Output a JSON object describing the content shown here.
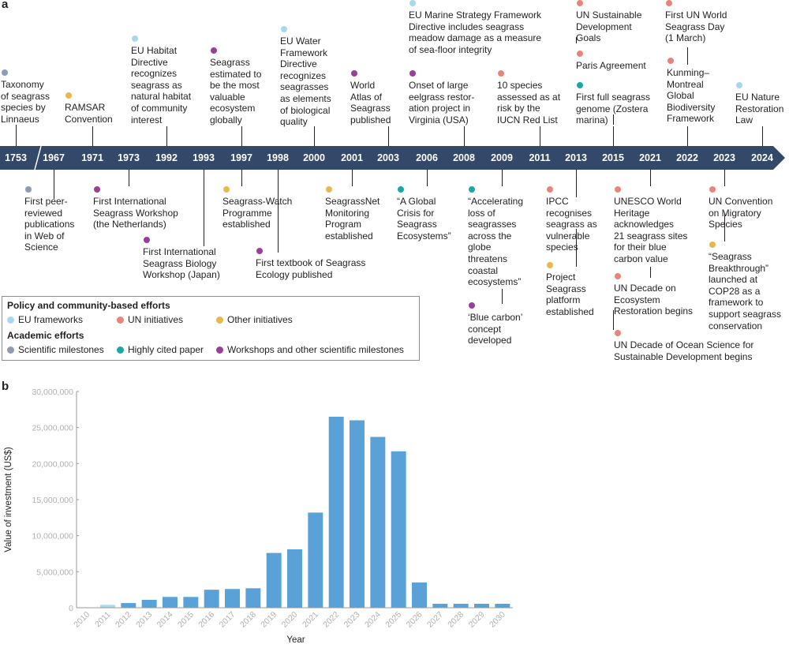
{
  "panel_a": {
    "letter": "a",
    "years": [
      "1753",
      "1967",
      "1971",
      "1973",
      "1992",
      "1993",
      "1997",
      "1998",
      "2000",
      "2001",
      "2003",
      "2006",
      "2008",
      "2009",
      "2011",
      "2013",
      "2015",
      "2021",
      "2022",
      "2023",
      "2024"
    ],
    "events_above": [
      {
        "text": "Taxonomy\nof seagrass\nspecies by\nLinnaeus",
        "category": "scientific"
      },
      {
        "text": "RAMSAR\nConvention",
        "category": "other"
      },
      {
        "text": "EU Habitat\nDirective\nrecognizes\nseagrass as\nnatural habitat\nof community\ninterest",
        "category": "eu"
      },
      {
        "text": "Seagrass\nestimated to\nbe the most\nvaluable\necosystem\nglobally",
        "category": "workshop"
      },
      {
        "text": "EU Water\nFramework\nDirective\nrecognizes\nseagrasses\nas elements\nof biological\nquality",
        "category": "eu"
      },
      {
        "text": "World\nAtlas of\nSeagrass\npublished",
        "category": "workshop"
      },
      {
        "text": "EU Marine Strategy Framework\nDirective includes seagrass\nmeadow damage as a measure\nof sea-floor integrity",
        "category": "eu"
      },
      {
        "text": "Onset of large\neelgrass restor-\nation project in\nVirginia (USA)",
        "category": "workshop"
      },
      {
        "text": "10 species\nassessed as at\nrisk by the\nIUCN Red List",
        "category": "un"
      },
      {
        "text": "UN Sustainable\nDevelopment\nGoals",
        "category": "un"
      },
      {
        "text": "Paris Agreement",
        "category": "un"
      },
      {
        "text": "First full seagrass\ngenome (Zostera\nmarina)",
        "category": "cited"
      },
      {
        "text": "First UN World\nSeagrass Day\n(1 March)",
        "category": "un"
      },
      {
        "text": "Kunming–\nMontreal\nGlobal\nBiodiversity\nFramework",
        "category": "un"
      },
      {
        "text": "EU Nature\nRestoration\nLaw",
        "category": "eu"
      }
    ],
    "events_below": [
      {
        "text": "First peer-\nreviewed\npublications\nin Web of\nScience",
        "category": "scientific"
      },
      {
        "text": "First International\nSeagrass Workshop\n(the Netherlands)",
        "category": "workshop"
      },
      {
        "text": "First International\nSeagrass Biology\nWorkshop (Japan)",
        "category": "workshop"
      },
      {
        "text": "Seagrass-Watch\nProgramme\nestablished",
        "category": "other"
      },
      {
        "text": "First textbook of Seagrass\nEcology published",
        "category": "workshop"
      },
      {
        "text": "SeagrassNet\nMonitoring\nProgram\nestablished",
        "category": "other"
      },
      {
        "text": "“A Global\nCrisis for\nSeagrass\nEcosystems”",
        "category": "cited"
      },
      {
        "text": "“Accelerating\nloss of\nseagrasses\nacross the\nglobe\nthreatens\ncoastal\necosystems”",
        "category": "cited"
      },
      {
        "text": "‘Blue carbon’\nconcept\ndeveloped",
        "category": "workshop"
      },
      {
        "text": "IPCC\nrecognises\nseagrass as\nvulnerable\nspecies",
        "category": "un"
      },
      {
        "text": "Project\nSeagrass\nplatform\nestablished",
        "category": "other"
      },
      {
        "text": "UNESCO World\nHeritage\nacknowledges\n21 seagrass sites\nfor their blue\ncarbon value",
        "category": "un"
      },
      {
        "text": "UN Decade on\nEcosystem\nRestoration begins",
        "category": "un"
      },
      {
        "text": "UN Decade of Ocean Science for\nSustainable Development begins",
        "category": "un"
      },
      {
        "text": "UN Convention\non Migratory\nSpecies",
        "category": "un"
      },
      {
        "text": "“Seagrass\nBreakthrough”\nlaunched at\nCOP28 as a\nframework to\nsupport seagrass\nconservation",
        "category": "other"
      }
    ],
    "legend": {
      "policy_heading": "Policy and community-based efforts",
      "academic_heading": "Academic efforts",
      "eu": "EU frameworks",
      "un": "UN initiatives",
      "other": "Other initiatives",
      "scientific": "Scientific milestones",
      "cited": "Highly cited paper",
      "workshop": "Workshops and other scientific milestones"
    },
    "colors": {
      "eu": "#a8d8f0",
      "un": "#e8857a",
      "other": "#e8b84e",
      "scientific": "#8e9bb3",
      "cited": "#1aa7a6",
      "workshop": "#9a3f97",
      "axis": "#34496a"
    }
  },
  "panel_b": {
    "letter": "b",
    "chart_data": {
      "type": "bar",
      "categories": [
        "2010",
        "2011",
        "2012",
        "2013",
        "2014",
        "2015",
        "2016",
        "2017",
        "2018",
        "2019",
        "2020",
        "2021",
        "2022",
        "2023",
        "2024",
        "2025",
        "2026",
        "2027",
        "2028",
        "2029",
        "2030"
      ],
      "values": [
        0,
        400000,
        650000,
        1100000,
        1500000,
        1500000,
        2500000,
        2600000,
        2700000,
        7600000,
        8100000,
        13200000,
        26500000,
        26000000,
        23700000,
        21700000,
        3500000,
        550000,
        550000,
        550000,
        550000
      ],
      "bar_colors": [
        "#5aa1d8",
        "#a8d8f0",
        "#5aa1d8",
        "#5aa1d8",
        "#5aa1d8",
        "#5aa1d8",
        "#5aa1d8",
        "#5aa1d8",
        "#5aa1d8",
        "#5aa1d8",
        "#5aa1d8",
        "#5aa1d8",
        "#5aa1d8",
        "#5aa1d8",
        "#5aa1d8",
        "#5aa1d8",
        "#5aa1d8",
        "#5aa1d8",
        "#5aa1d8",
        "#5aa1d8",
        "#5aa1d8"
      ],
      "xlabel": "Year",
      "ylabel": "Value of investment (US$)",
      "ylim": [
        0,
        30000000
      ],
      "yticks": [
        0,
        5000000,
        10000000,
        15000000,
        20000000,
        25000000,
        30000000
      ],
      "ytick_labels": [
        "0",
        "5,000,000",
        "10,000,000",
        "15,000,000",
        "20,000,000",
        "25,000,000",
        "30,000,000"
      ]
    }
  }
}
